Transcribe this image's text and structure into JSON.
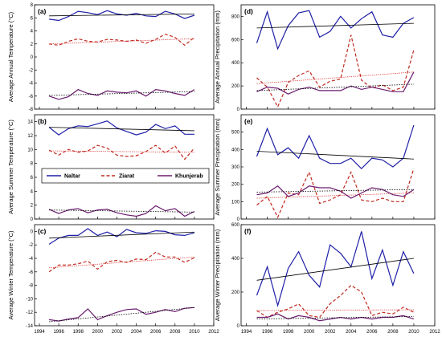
{
  "series_styles": [
    {
      "name": "Naltar",
      "color": "#1f1fa8",
      "dash": "",
      "trend_color": "#000000",
      "trend_dash": ""
    },
    {
      "name": "Ziarat",
      "color": "#c0281e",
      "dash": "4,2.5",
      "trend_color": "#e03030",
      "trend_dash": "1.2,1.2"
    },
    {
      "name": "Khunjerab",
      "color": "#6a1b6e",
      "dash": "",
      "trend_color": "#000000",
      "trend_dash": "1.5,1.5"
    }
  ],
  "legend": [
    "Naltar",
    "Ziarat",
    "Khunjerab"
  ],
  "chart_data": [
    {
      "panel": "(a)",
      "type": "line",
      "ylabel": "Average Annual Temperature (°C)",
      "ylim": [
        -8,
        8
      ],
      "yticks": [
        -8,
        -6,
        -4,
        -2,
        0,
        2,
        4,
        6,
        8
      ],
      "x": [
        1995,
        1996,
        1997,
        1998,
        1999,
        2000,
        2001,
        2002,
        2003,
        2004,
        2005,
        2006,
        2007,
        2008,
        2009,
        2010
      ],
      "series": [
        {
          "values": [
            5.8,
            5.6,
            6.2,
            7.0,
            6.8,
            6.5,
            7.1,
            6.6,
            6.4,
            6.7,
            6.3,
            6.2,
            7.0,
            6.6,
            5.9,
            6.4
          ],
          "trend": [
            6.3,
            6.6
          ]
        },
        {
          "values": [
            2.0,
            1.8,
            2.4,
            2.8,
            2.4,
            2.3,
            2.7,
            2.6,
            2.4,
            2.6,
            2.1,
            2.7,
            3.5,
            3.0,
            1.8,
            3.0
          ],
          "trend": [
            2.0,
            2.8
          ]
        },
        {
          "values": [
            -6.0,
            -6.5,
            -6.1,
            -5.0,
            -5.6,
            -5.9,
            -5.2,
            -5.4,
            -5.5,
            -5.2,
            -6.0,
            -5.0,
            -5.2,
            -5.6,
            -5.9,
            -5.0
          ],
          "trend": [
            -5.9,
            -5.3
          ]
        }
      ]
    },
    {
      "panel": "(b)",
      "type": "line",
      "ylabel": "Average Summer Temperature (°C)",
      "ylim": [
        0,
        15
      ],
      "yticks": [
        0,
        2,
        4,
        6,
        8,
        10,
        12,
        14
      ],
      "x": [
        1995,
        1996,
        1997,
        1998,
        1999,
        2000,
        2001,
        2002,
        2003,
        2004,
        2005,
        2006,
        2007,
        2008,
        2009,
        2010
      ],
      "series": [
        {
          "values": [
            13.2,
            12.1,
            13.0,
            13.4,
            13.3,
            13.7,
            14.1,
            13.1,
            12.6,
            12.1,
            12.5,
            13.6,
            13.0,
            13.4,
            12.2,
            12.2
          ],
          "trend": [
            13.2,
            12.7
          ]
        },
        {
          "values": [
            9.9,
            9.2,
            10.0,
            9.6,
            9.8,
            10.6,
            10.2,
            9.2,
            9.0,
            9.1,
            9.7,
            10.6,
            9.5,
            10.5,
            8.6,
            10.2
          ],
          "trend": [
            9.8,
            9.6
          ]
        },
        {
          "values": [
            1.4,
            0.8,
            1.3,
            1.5,
            0.9,
            1.3,
            1.4,
            0.9,
            0.6,
            0.4,
            0.8,
            1.9,
            1.2,
            1.5,
            0.4,
            1.1
          ],
          "trend": [
            1.3,
            1.0
          ]
        }
      ]
    },
    {
      "panel": "(c)",
      "type": "line",
      "ylabel": "Average Winter Temperature (°C)",
      "ylim": [
        -14,
        1
      ],
      "yticks": [
        -14,
        -12,
        -10,
        -8,
        -6,
        -4,
        -2,
        0
      ],
      "x": [
        1995,
        1996,
        1997,
        1998,
        1999,
        2000,
        2001,
        2002,
        2003,
        2004,
        2005,
        2006,
        2007,
        2008,
        2009,
        2010
      ],
      "series": [
        {
          "values": [
            -1.9,
            -1.0,
            -0.6,
            -0.6,
            0.4,
            -0.6,
            -0.1,
            -0.8,
            0.3,
            -0.2,
            -0.3,
            0.1,
            0.0,
            -0.5,
            -0.6,
            -0.2
          ],
          "trend": [
            -1.0,
            -0.1
          ]
        },
        {
          "values": [
            -6.0,
            -5.0,
            -5.0,
            -4.8,
            -4.4,
            -5.6,
            -4.5,
            -4.3,
            -4.6,
            -4.1,
            -4.2,
            -3.1,
            -3.8,
            -3.8,
            -4.6,
            -3.9
          ],
          "trend": [
            -5.4,
            -3.8
          ]
        },
        {
          "values": [
            -13.1,
            -13.3,
            -13.0,
            -12.8,
            -11.5,
            -13.1,
            -12.5,
            -12.0,
            -11.6,
            -11.5,
            -12.3,
            -12.0,
            -11.6,
            -11.9,
            -11.4,
            -11.3
          ],
          "trend": [
            -13.4,
            -11.3
          ]
        }
      ]
    },
    {
      "panel": "(d)",
      "type": "line",
      "ylabel": "Average Annual Precipitation (mm)",
      "ylim": [
        0,
        900
      ],
      "yticks": [
        0,
        200,
        400,
        600,
        800
      ],
      "x": [
        1995,
        1996,
        1997,
        1998,
        1999,
        2000,
        2001,
        2002,
        2003,
        2004,
        2005,
        2006,
        2007,
        2008,
        2009,
        2010
      ],
      "series": [
        {
          "values": [
            570,
            840,
            520,
            720,
            830,
            850,
            620,
            670,
            800,
            700,
            780,
            840,
            640,
            620,
            740,
            790
          ],
          "trend": [
            700,
            740
          ]
        },
        {
          "values": [
            270,
            190,
            20,
            230,
            290,
            330,
            190,
            240,
            260,
            640,
            250,
            180,
            210,
            160,
            190,
            510
          ],
          "trend": [
            220,
            320
          ]
        },
        {
          "values": [
            150,
            190,
            180,
            130,
            170,
            190,
            160,
            160,
            160,
            200,
            170,
            190,
            170,
            150,
            150,
            320
          ],
          "trend": [
            160,
            215
          ]
        }
      ]
    },
    {
      "panel": "(e)",
      "type": "line",
      "ylabel": "Average Summer Precipitation (mm)",
      "ylim": [
        0,
        600
      ],
      "yticks": [
        0,
        100,
        200,
        300,
        400,
        500
      ],
      "x": [
        1995,
        1996,
        1997,
        1998,
        1999,
        2000,
        2001,
        2002,
        2003,
        2004,
        2005,
        2006,
        2007,
        2008,
        2009,
        2010
      ],
      "series": [
        {
          "values": [
            360,
            520,
            370,
            410,
            350,
            480,
            350,
            320,
            320,
            350,
            290,
            350,
            340,
            300,
            350,
            540
          ],
          "trend": [
            390,
            345
          ]
        },
        {
          "values": [
            80,
            130,
            10,
            150,
            140,
            270,
            90,
            110,
            140,
            270,
            110,
            100,
            120,
            100,
            100,
            290
          ],
          "trend": [
            120,
            150
          ]
        },
        {
          "values": [
            140,
            150,
            190,
            130,
            150,
            190,
            180,
            180,
            160,
            120,
            150,
            180,
            170,
            140,
            130,
            170
          ],
          "trend": [
            155,
            170
          ]
        }
      ]
    },
    {
      "panel": "(f)",
      "type": "line",
      "ylabel": "Average Winter Precipitation (mm)",
      "ylim": [
        0,
        600
      ],
      "yticks": [
        0,
        200,
        400,
        600
      ],
      "x": [
        1995,
        1996,
        1997,
        1998,
        1999,
        2000,
        2001,
        2002,
        2003,
        2004,
        2005,
        2006,
        2007,
        2008,
        2009,
        2010
      ],
      "series": [
        {
          "values": [
            180,
            350,
            120,
            340,
            440,
            300,
            230,
            480,
            430,
            350,
            560,
            280,
            450,
            240,
            440,
            310
          ],
          "trend": [
            270,
            400
          ]
        },
        {
          "values": [
            90,
            50,
            80,
            100,
            130,
            60,
            50,
            130,
            180,
            240,
            200,
            60,
            80,
            70,
            110,
            80
          ],
          "trend": [
            90,
            95
          ]
        },
        {
          "values": [
            50,
            50,
            70,
            40,
            60,
            50,
            30,
            40,
            50,
            40,
            50,
            40,
            50,
            50,
            60,
            40
          ],
          "trend": [
            40,
            55
          ]
        }
      ]
    }
  ],
  "x_axis": {
    "ticks": [
      1994,
      1996,
      1998,
      2000,
      2002,
      2004,
      2006,
      2008,
      2010,
      2012
    ],
    "xlim": [
      1993.5,
      2012
    ]
  }
}
